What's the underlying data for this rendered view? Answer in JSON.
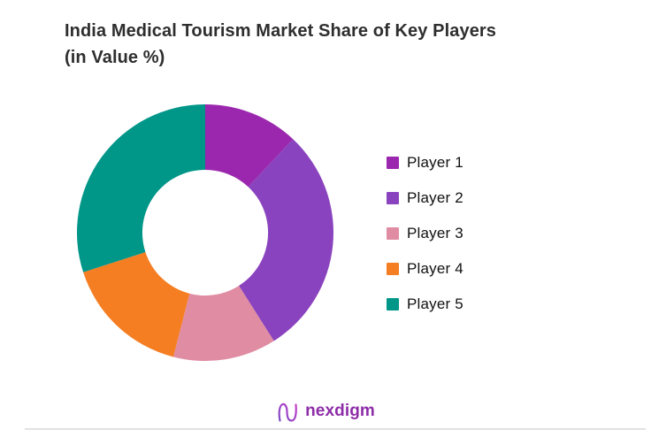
{
  "page": {
    "title_line1": "India Medical Tourism Market Share of Key Players",
    "title_line2": "(in Value %)"
  },
  "chart_data": {
    "type": "pie",
    "subtype": "donut",
    "title": "India Medical Tourism Market Share of Key Players (in Value %)",
    "unit": "percent of value",
    "start_angle_deg": 0,
    "direction": "clockwise",
    "inner_radius_ratio": 0.49,
    "legend_position": "right",
    "data_labels_shown": false,
    "series": [
      {
        "name": "Player 1",
        "value": 12,
        "color": "#9B27AE"
      },
      {
        "name": "Player 2",
        "value": 29,
        "color": "#8A43BE"
      },
      {
        "name": "Player 3",
        "value": 13,
        "color": "#E08CA2"
      },
      {
        "name": "Player 4",
        "value": 16,
        "color": "#F57E22"
      },
      {
        "name": "Player 5",
        "value": 30,
        "color": "#009688"
      }
    ]
  },
  "branding": {
    "logo_text": "nexdigm",
    "logo_color": "#8E2DA8",
    "logo_mark": "n-wave-icon",
    "logo_gradient_start": "#7C4DC4",
    "logo_gradient_end": "#C33DC9"
  }
}
